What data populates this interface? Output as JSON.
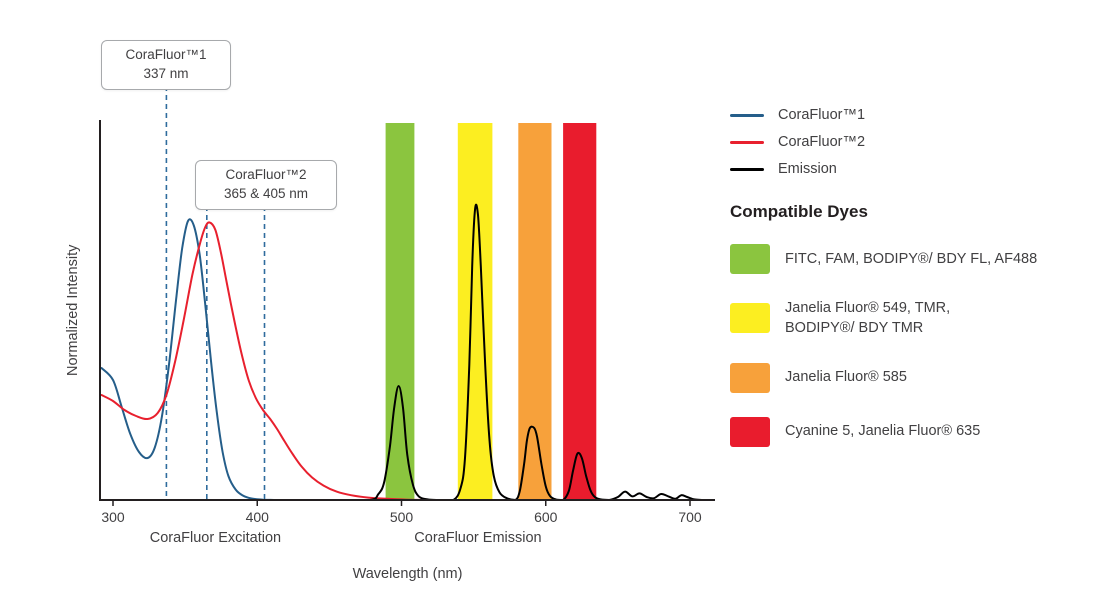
{
  "colors": {
    "axis": "#231f20",
    "text": "#414042",
    "dashed_line": "#2f6c9d",
    "corafluor1_blue": "#255e8a",
    "corafluor2_red": "#e8202e",
    "emission_black": "#000000",
    "band_green": "#8bc53f",
    "band_yellow": "#fcee21",
    "band_orange": "#f7a13b",
    "band_red": "#e91c2d"
  },
  "chart_data": {
    "type": "line",
    "title": "",
    "xlabel": "Wavelength (nm)",
    "ylabel": "Normalized Intensity",
    "x_range": [
      300,
      720
    ],
    "y_range": [
      0,
      1
    ],
    "x_ticks": [
      300,
      400,
      500,
      600,
      700
    ],
    "grid": false,
    "legend_position": "right",
    "x_axis_captions": [
      {
        "label": "CoraFluor Excitation",
        "center_nm": 371
      },
      {
        "label": "CoraFluor Emission",
        "center_nm": 553
      }
    ],
    "annotations": [
      {
        "title": "CoraFluor™1",
        "subtitle": "337 nm",
        "lines_nm": [
          337
        ]
      },
      {
        "title": "CoraFluor™2",
        "subtitle": "365 & 405 nm",
        "lines_nm": [
          365,
          405
        ]
      }
    ],
    "filter_bands": [
      {
        "id": "green",
        "color": "#8bc53f",
        "range_nm": [
          489,
          509
        ]
      },
      {
        "id": "yellow",
        "color": "#fcee21",
        "range_nm": [
          539,
          563
        ]
      },
      {
        "id": "orange",
        "color": "#f7a13b",
        "range_nm": [
          581,
          604
        ]
      },
      {
        "id": "red",
        "color": "#e91c2d",
        "range_nm": [
          612,
          635
        ]
      }
    ],
    "series": [
      {
        "name": "CoraFluor™1",
        "color": "#255e8a",
        "points": [
          [
            292,
            0.44
          ],
          [
            300,
            0.4
          ],
          [
            306,
            0.31
          ],
          [
            312,
            0.22
          ],
          [
            318,
            0.16
          ],
          [
            324,
            0.14
          ],
          [
            329,
            0.175
          ],
          [
            334,
            0.28
          ],
          [
            339,
            0.46
          ],
          [
            344,
            0.68
          ],
          [
            348,
            0.84
          ],
          [
            352,
            0.93
          ],
          [
            356,
            0.915
          ],
          [
            360,
            0.82
          ],
          [
            364,
            0.65
          ],
          [
            368,
            0.46
          ],
          [
            372,
            0.29
          ],
          [
            376,
            0.16
          ],
          [
            380,
            0.08
          ],
          [
            385,
            0.035
          ],
          [
            390,
            0.015
          ],
          [
            396,
            0.005
          ],
          [
            404,
            0.001
          ],
          [
            412,
            0
          ]
        ]
      },
      {
        "name": "CoraFluor™2",
        "color": "#e8202e",
        "points": [
          [
            292,
            0.35
          ],
          [
            300,
            0.33
          ],
          [
            308,
            0.3
          ],
          [
            316,
            0.28
          ],
          [
            324,
            0.27
          ],
          [
            331,
            0.29
          ],
          [
            337,
            0.35
          ],
          [
            343,
            0.46
          ],
          [
            349,
            0.6
          ],
          [
            355,
            0.75
          ],
          [
            360,
            0.85
          ],
          [
            364,
            0.91
          ],
          [
            367,
            0.925
          ],
          [
            371,
            0.9
          ],
          [
            375,
            0.82
          ],
          [
            379,
            0.72
          ],
          [
            384,
            0.6
          ],
          [
            389,
            0.49
          ],
          [
            394,
            0.4
          ],
          [
            399,
            0.34
          ],
          [
            404,
            0.3
          ],
          [
            409,
            0.27
          ],
          [
            414,
            0.235
          ],
          [
            419,
            0.195
          ],
          [
            425,
            0.15
          ],
          [
            431,
            0.11
          ],
          [
            438,
            0.075
          ],
          [
            446,
            0.048
          ],
          [
            455,
            0.028
          ],
          [
            465,
            0.016
          ],
          [
            477,
            0.008
          ],
          [
            490,
            0.004
          ],
          [
            505,
            0.001
          ],
          [
            520,
            0
          ]
        ]
      },
      {
        "name": "Emission",
        "color": "#000000",
        "points": [
          [
            300,
            0
          ],
          [
            450,
            0
          ],
          [
            478,
            0
          ],
          [
            484,
            0.02
          ],
          [
            488,
            0.06
          ],
          [
            492,
            0.18
          ],
          [
            495,
            0.31
          ],
          [
            498,
            0.38
          ],
          [
            501,
            0.31
          ],
          [
            504,
            0.15
          ],
          [
            508,
            0.05
          ],
          [
            512,
            0.012
          ],
          [
            518,
            0.002
          ],
          [
            526,
            0
          ],
          [
            536,
            0
          ],
          [
            541,
            0.04
          ],
          [
            544,
            0.14
          ],
          [
            547,
            0.45
          ],
          [
            549,
            0.78
          ],
          [
            551,
            0.97
          ],
          [
            553,
            0.95
          ],
          [
            555,
            0.78
          ],
          [
            558,
            0.45
          ],
          [
            561,
            0.2
          ],
          [
            564,
            0.08
          ],
          [
            568,
            0.025
          ],
          [
            573,
            0.006
          ],
          [
            579,
            0
          ],
          [
            582,
            0.03
          ],
          [
            585,
            0.12
          ],
          [
            587,
            0.2
          ],
          [
            589,
            0.24
          ],
          [
            592,
            0.24
          ],
          [
            594,
            0.21
          ],
          [
            597,
            0.12
          ],
          [
            600,
            0.045
          ],
          [
            603,
            0.013
          ],
          [
            607,
            0.002
          ],
          [
            612,
            0
          ],
          [
            616,
            0.03
          ],
          [
            619,
            0.1
          ],
          [
            622,
            0.155
          ],
          [
            625,
            0.14
          ],
          [
            628,
            0.08
          ],
          [
            631,
            0.032
          ],
          [
            634,
            0.01
          ],
          [
            638,
            0.002
          ],
          [
            644,
            0
          ],
          [
            650,
            0.01
          ],
          [
            655,
            0.028
          ],
          [
            660,
            0.012
          ],
          [
            665,
            0.022
          ],
          [
            670,
            0.01
          ],
          [
            675,
            0.006
          ],
          [
            680,
            0.02
          ],
          [
            685,
            0.012
          ],
          [
            690,
            0.004
          ],
          [
            694,
            0.016
          ],
          [
            698,
            0.01
          ],
          [
            703,
            0.002
          ],
          [
            708,
            0
          ]
        ]
      }
    ]
  },
  "dyes": {
    "heading": "Compatible Dyes",
    "items": [
      {
        "color": "#8bc53f",
        "label": "FITC, FAM, BODIPY®/ BDY FL, AF488"
      },
      {
        "color": "#fcee21",
        "label": "Janelia Fluor® 549, TMR,\nBODIPY®/ BDY TMR"
      },
      {
        "color": "#f7a13b",
        "label": "Janelia Fluor® 585"
      },
      {
        "color": "#e91c2d",
        "label": "Cyanine 5, Janelia Fluor® 635"
      }
    ]
  }
}
